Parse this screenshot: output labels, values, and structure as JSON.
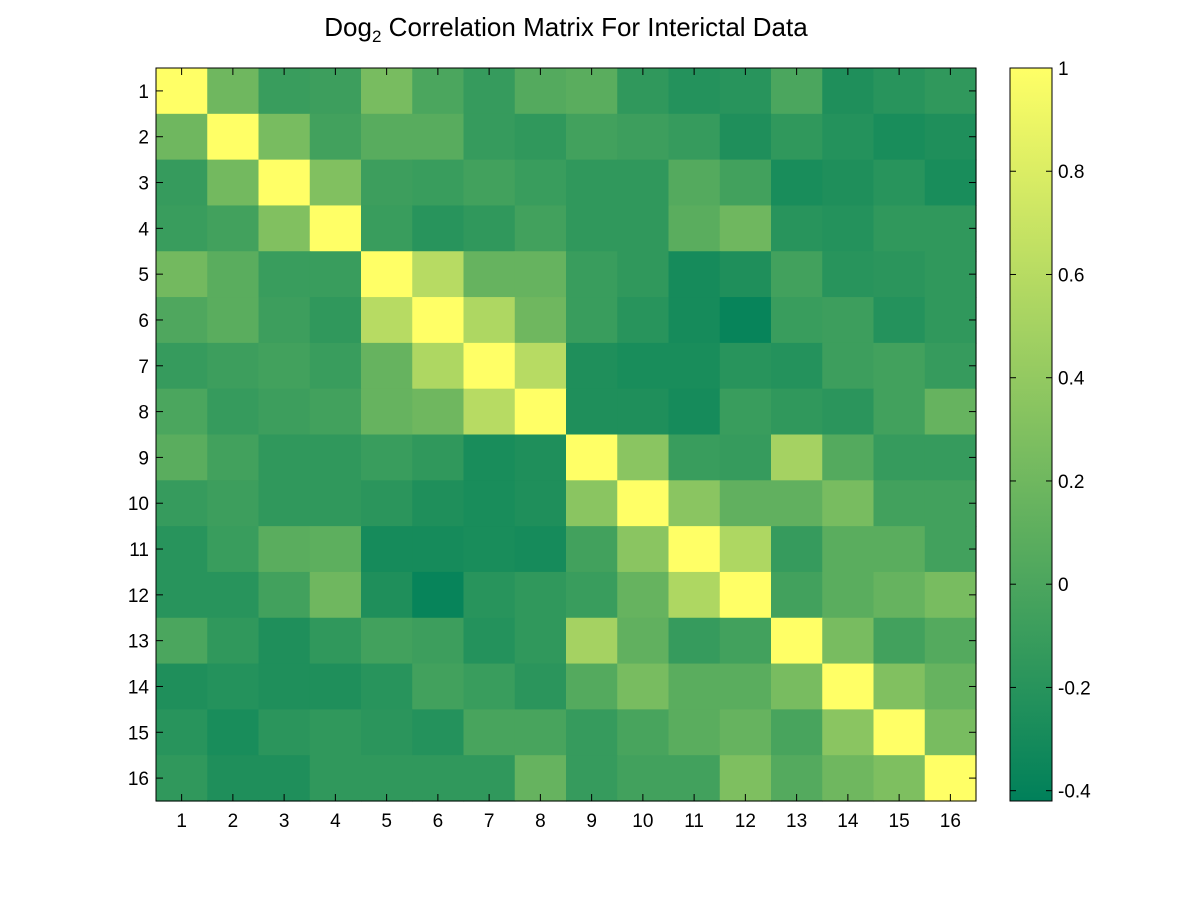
{
  "chart_data": {
    "type": "heatmap",
    "title": {
      "main": "Dog",
      "subscript": "2",
      "rest": " Correlation Matrix For Interictal Data"
    },
    "xlabel": "",
    "ylabel": "",
    "row_labels": [
      "1",
      "2",
      "3",
      "4",
      "5",
      "6",
      "7",
      "8",
      "9",
      "10",
      "11",
      "12",
      "13",
      "14",
      "15",
      "16"
    ],
    "col_labels": [
      "1",
      "2",
      "3",
      "4",
      "5",
      "6",
      "7",
      "8",
      "9",
      "10",
      "11",
      "12",
      "13",
      "14",
      "15",
      "16"
    ],
    "colorbar": {
      "range": [
        -0.42,
        1.0
      ],
      "ticks": [
        -0.4,
        -0.2,
        0,
        0.2,
        0.4,
        0.6,
        0.8,
        1
      ],
      "tick_labels": [
        "-0.4",
        "-0.2",
        "0",
        "0.2",
        "0.4",
        "0.6",
        "0.8",
        "1"
      ],
      "colormap": "summer",
      "colors": {
        "low": "#00805a",
        "high": "#ffff66"
      }
    },
    "values": [
      [
        1.0,
        0.2,
        -0.1,
        -0.08,
        0.25,
        0.0,
        -0.12,
        0.05,
        0.08,
        -0.15,
        -0.22,
        -0.2,
        0.0,
        -0.25,
        -0.2,
        -0.15
      ],
      [
        0.2,
        1.0,
        0.25,
        -0.05,
        0.07,
        0.07,
        -0.12,
        -0.15,
        -0.05,
        -0.08,
        -0.12,
        -0.25,
        -0.15,
        -0.22,
        -0.28,
        -0.25
      ],
      [
        -0.12,
        0.22,
        1.0,
        0.3,
        -0.08,
        -0.1,
        -0.05,
        -0.1,
        -0.15,
        -0.15,
        0.05,
        -0.05,
        -0.28,
        -0.25,
        -0.2,
        -0.28
      ],
      [
        -0.1,
        -0.05,
        0.3,
        1.0,
        -0.1,
        -0.2,
        -0.15,
        -0.05,
        -0.15,
        -0.15,
        0.08,
        0.2,
        -0.2,
        -0.22,
        -0.15,
        -0.15
      ],
      [
        0.22,
        0.08,
        -0.1,
        -0.1,
        1.0,
        0.6,
        0.15,
        0.15,
        -0.1,
        -0.15,
        -0.3,
        -0.25,
        -0.05,
        -0.2,
        -0.18,
        -0.15
      ],
      [
        0.02,
        0.08,
        -0.08,
        -0.15,
        0.6,
        1.0,
        0.55,
        0.2,
        -0.1,
        -0.2,
        -0.3,
        -0.38,
        -0.1,
        -0.08,
        -0.22,
        -0.15
      ],
      [
        -0.12,
        -0.08,
        -0.05,
        -0.1,
        0.15,
        0.55,
        1.0,
        0.6,
        -0.25,
        -0.28,
        -0.28,
        -0.2,
        -0.22,
        -0.08,
        -0.05,
        -0.12
      ],
      [
        0.0,
        -0.12,
        -0.08,
        -0.05,
        0.15,
        0.2,
        0.6,
        1.0,
        -0.25,
        -0.25,
        -0.3,
        -0.1,
        -0.15,
        -0.18,
        -0.05,
        0.15
      ],
      [
        0.08,
        -0.05,
        -0.15,
        -0.15,
        -0.1,
        -0.15,
        -0.28,
        -0.25,
        1.0,
        0.35,
        -0.1,
        -0.12,
        0.5,
        0.05,
        -0.12,
        -0.12
      ],
      [
        -0.12,
        -0.08,
        -0.15,
        -0.15,
        -0.18,
        -0.25,
        -0.28,
        -0.25,
        0.35,
        1.0,
        0.35,
        0.12,
        0.12,
        0.25,
        -0.05,
        -0.05
      ],
      [
        -0.2,
        -0.1,
        0.08,
        0.1,
        -0.3,
        -0.3,
        -0.28,
        -0.3,
        -0.05,
        0.35,
        1.0,
        0.55,
        -0.12,
        0.08,
        0.08,
        -0.05
      ],
      [
        -0.2,
        -0.2,
        -0.05,
        0.2,
        -0.25,
        -0.38,
        -0.2,
        -0.15,
        -0.1,
        0.15,
        0.55,
        1.0,
        -0.05,
        0.08,
        0.15,
        0.25
      ],
      [
        0.0,
        -0.15,
        -0.25,
        -0.15,
        -0.05,
        -0.08,
        -0.22,
        -0.15,
        0.5,
        0.12,
        -0.12,
        -0.05,
        1.0,
        0.25,
        -0.05,
        0.05
      ],
      [
        -0.25,
        -0.22,
        -0.25,
        -0.25,
        -0.2,
        -0.05,
        -0.1,
        -0.18,
        0.05,
        0.25,
        0.08,
        0.08,
        0.25,
        1.0,
        0.3,
        0.15
      ],
      [
        -0.2,
        -0.28,
        -0.18,
        -0.15,
        -0.18,
        -0.22,
        -0.02,
        -0.02,
        -0.12,
        -0.02,
        0.08,
        0.15,
        -0.02,
        0.35,
        1.0,
        0.25
      ],
      [
        -0.15,
        -0.25,
        -0.25,
        -0.15,
        -0.15,
        -0.15,
        -0.15,
        0.15,
        -0.12,
        -0.05,
        -0.05,
        0.28,
        0.05,
        0.2,
        0.28,
        1.0
      ]
    ]
  }
}
